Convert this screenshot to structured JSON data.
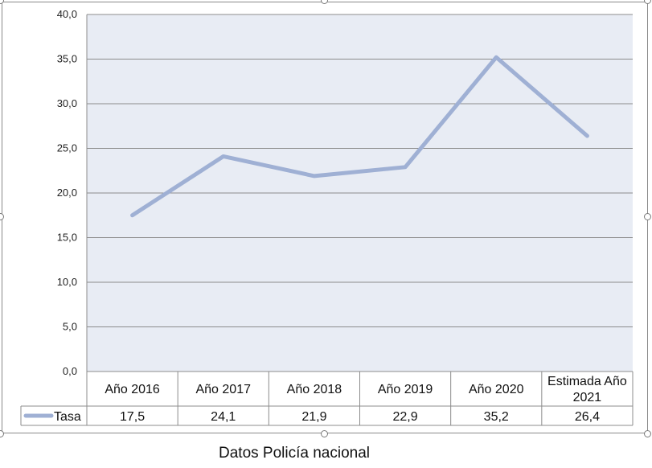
{
  "chart_data": {
    "type": "line",
    "categories": [
      "Año 2016",
      "Año 2017",
      "Año 2018",
      "Año 2019",
      "Año 2020",
      "Estimada Año 2021"
    ],
    "series": [
      {
        "name": "Tasa",
        "values": [
          17.5,
          24.1,
          21.9,
          22.9,
          35.2,
          26.4
        ]
      }
    ],
    "value_labels": [
      "17,5",
      "24,1",
      "21,9",
      "22,9",
      "35,2",
      "26,4"
    ],
    "yticks": [
      "0,0",
      "5,0",
      "10,0",
      "15,0",
      "20,0",
      "25,0",
      "30,0",
      "35,0",
      "40,0"
    ],
    "ylim": [
      0,
      40
    ],
    "grid": true,
    "data_table": true,
    "colors": {
      "line": "#9fb0d4",
      "plot_bg": "#e8ecf4",
      "grid": "#8c8c8c"
    }
  },
  "caption": "Datos Policía nacional"
}
